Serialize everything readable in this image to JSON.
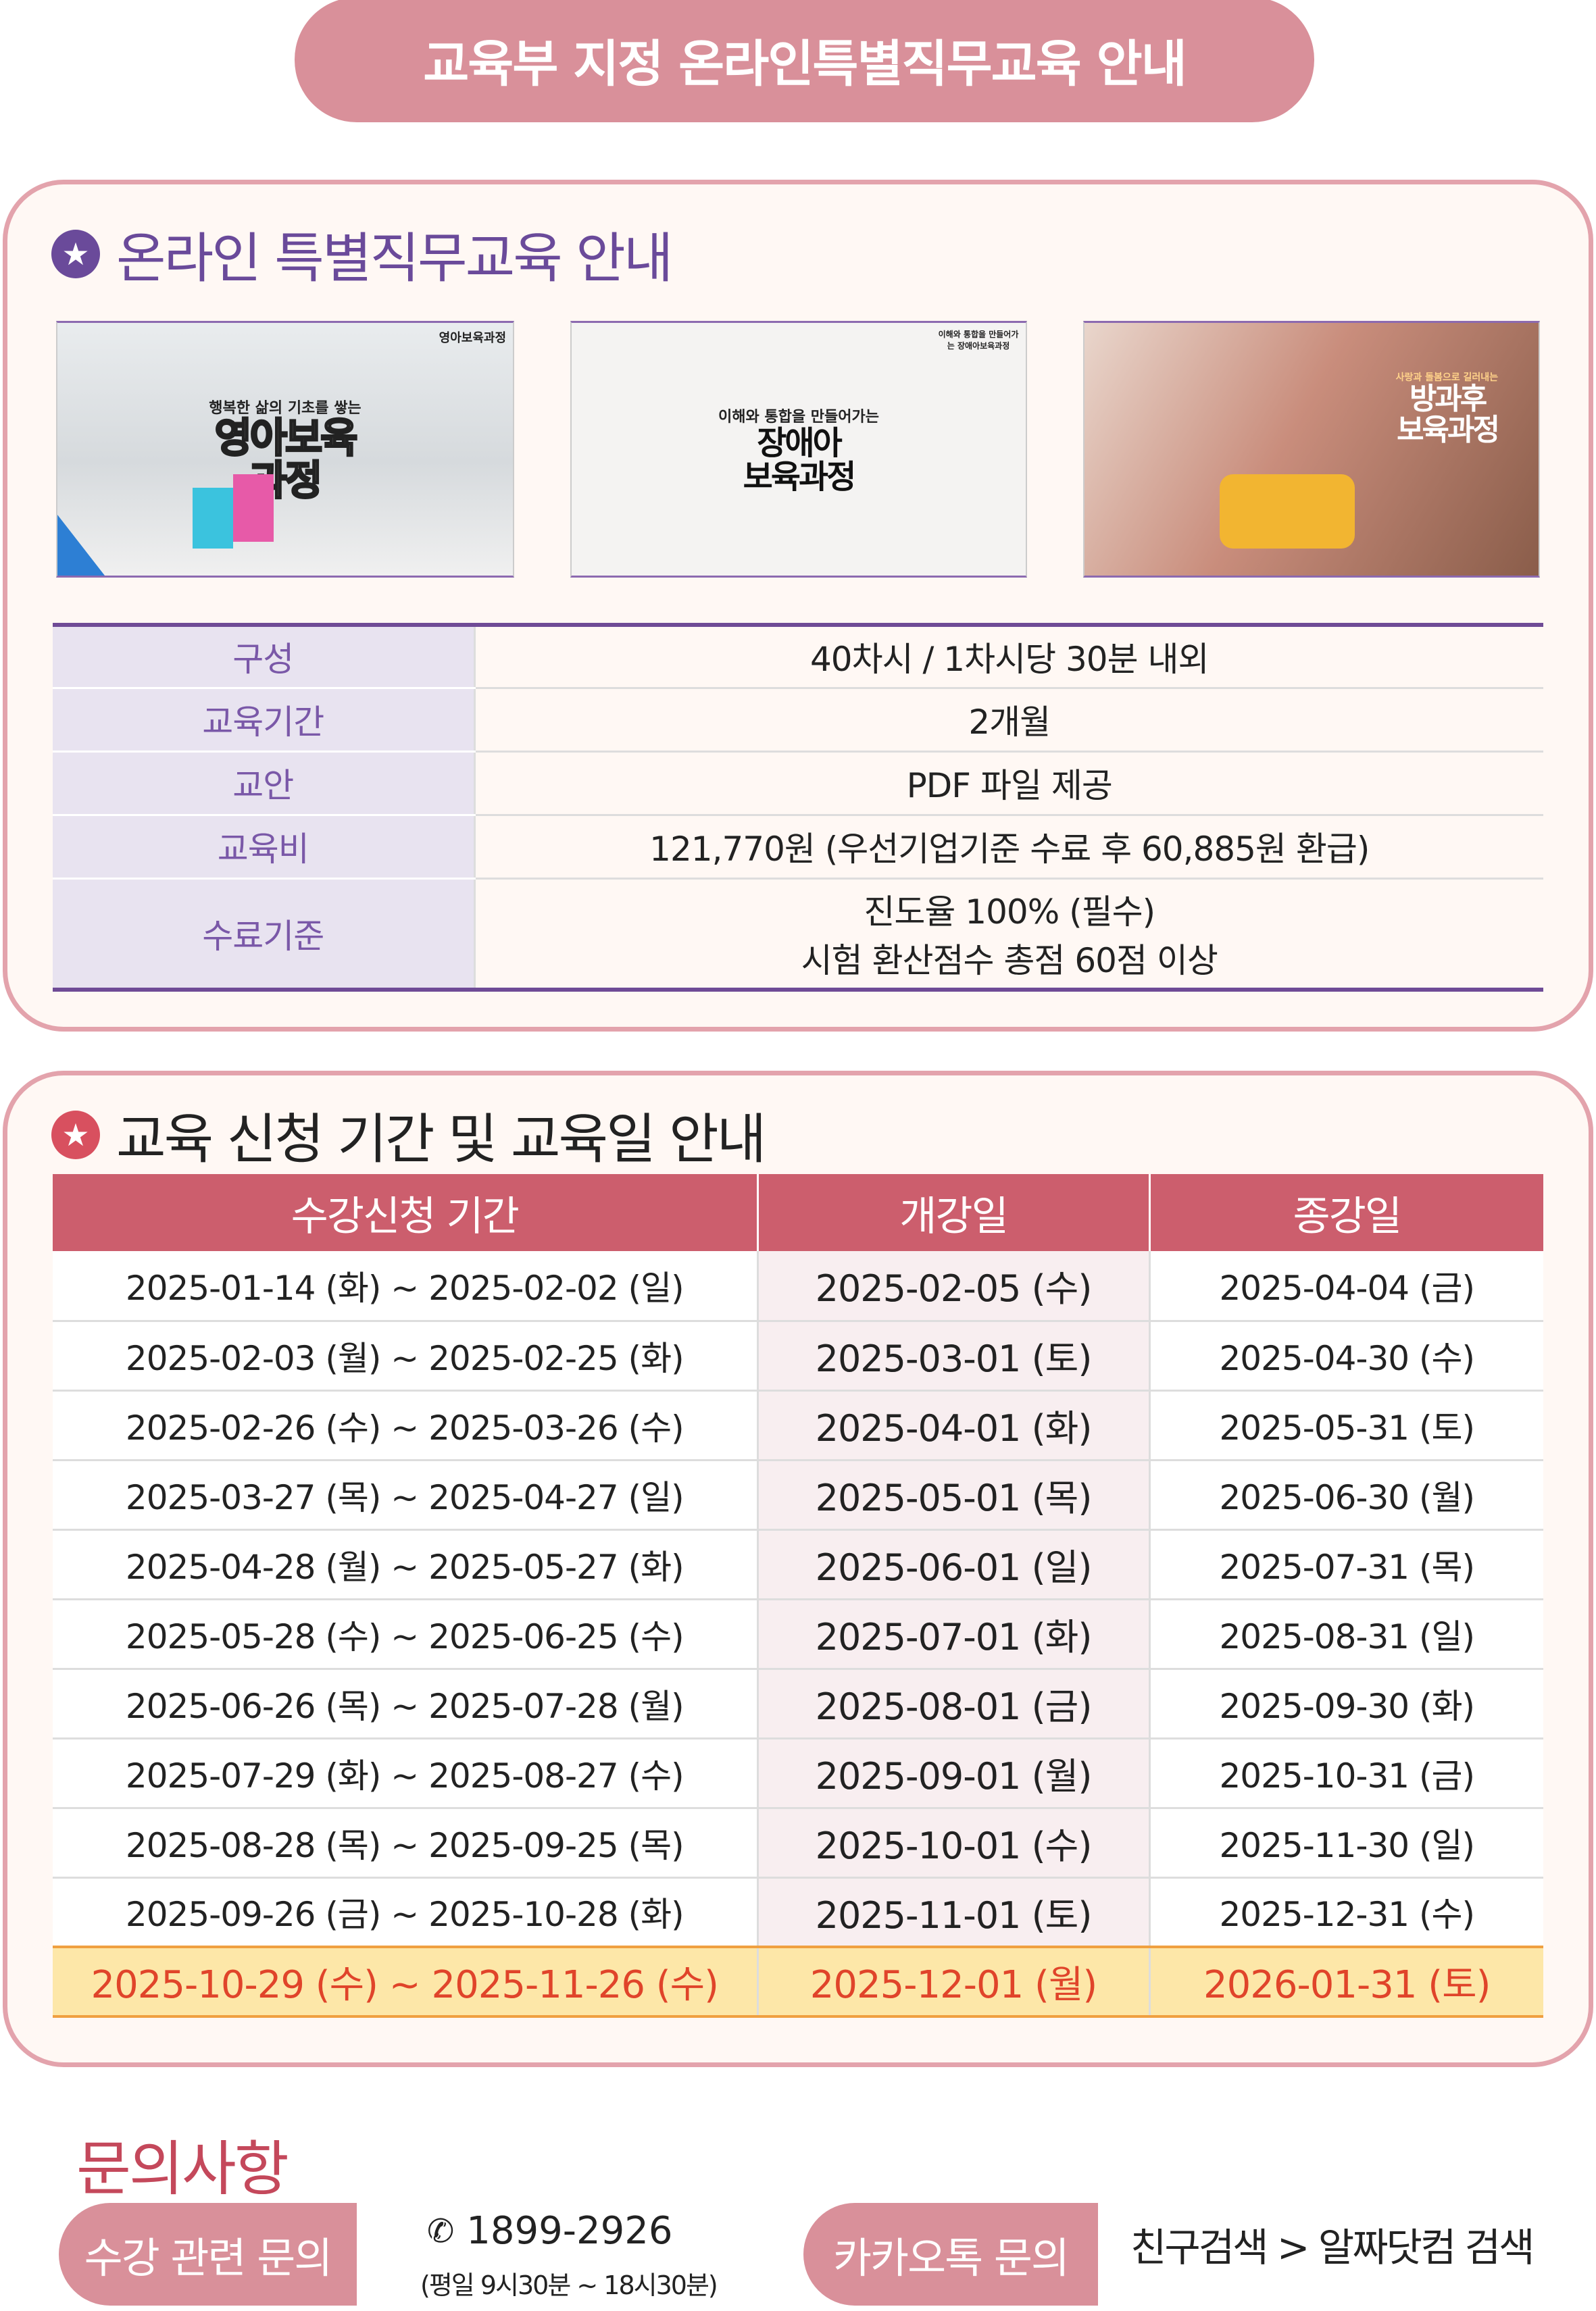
{
  "banner": {
    "title": "교육부 지정 온라인특별직무교육 안내"
  },
  "section1": {
    "title": "온라인 특별직무교육 안내",
    "star_icon": "star-icon",
    "accent_color": "#6a4a9a",
    "courses": [
      {
        "tag": "영아보육과정",
        "subtitle": "행복한 삶의 기초를 쌓는",
        "title": "영아보육\n과정"
      },
      {
        "tag": "이해와 통합을 만들어가는 장애아보육과정",
        "subtitle": "이해와 통합을 만들어가는",
        "title": "장애아\n보육과정"
      },
      {
        "tag": "",
        "subtitle": "사랑과 돌봄으로 길러내는",
        "title": "방과후\n보육과정"
      }
    ],
    "info_rows": [
      {
        "label": "구성",
        "value": "40차시 / 1차시당 30분 내외"
      },
      {
        "label": "교육기간",
        "value": "2개월"
      },
      {
        "label": "교안",
        "value": "PDF 파일 제공"
      },
      {
        "label": "교육비",
        "value": "121,770원 (우선기업기준 수료 후 60,885원 환급)"
      },
      {
        "label": "수료기준",
        "value": "진도율 100% (필수)",
        "value2": "시험 환산점수 총점 60점 이상"
      }
    ]
  },
  "section2": {
    "title": "교육 신청 기간 및 교육일 안내",
    "star_icon": "star-icon",
    "accent_color": "#cc5e6d",
    "headers": [
      "수강신청 기간",
      "개강일",
      "종강일"
    ],
    "rows": [
      [
        "2025-01-14 (화) ~ 2025-02-02 (일)",
        "2025-02-05 (수)",
        "2025-04-04 (금)"
      ],
      [
        "2025-02-03 (월) ~ 2025-02-25 (화)",
        "2025-03-01 (토)",
        "2025-04-30 (수)"
      ],
      [
        "2025-02-26 (수) ~ 2025-03-26 (수)",
        "2025-04-01 (화)",
        "2025-05-31 (토)"
      ],
      [
        "2025-03-27 (목) ~ 2025-04-27 (일)",
        "2025-05-01 (목)",
        "2025-06-30 (월)"
      ],
      [
        "2025-04-28 (월) ~ 2025-05-27 (화)",
        "2025-06-01 (일)",
        "2025-07-31 (목)"
      ],
      [
        "2025-05-28 (수) ~ 2025-06-25 (수)",
        "2025-07-01 (화)",
        "2025-08-31 (일)"
      ],
      [
        "2025-06-26 (목) ~ 2025-07-28 (월)",
        "2025-08-01 (금)",
        "2025-09-30 (화)"
      ],
      [
        "2025-07-29 (화) ~ 2025-08-27 (수)",
        "2025-09-01 (월)",
        "2025-10-31 (금)"
      ],
      [
        "2025-08-28 (목) ~ 2025-09-25 (목)",
        "2025-10-01 (수)",
        "2025-11-30 (일)"
      ],
      [
        "2025-09-26 (금) ~ 2025-10-28 (화)",
        "2025-11-01 (토)",
        "2025-12-31 (수)"
      ],
      [
        "2025-10-29 (수) ~ 2025-11-26 (수)",
        "2025-12-01 (월)",
        "2026-01-31 (토)"
      ]
    ],
    "highlight_row": 10
  },
  "contact": {
    "title": "문의사항",
    "course_button": "수강 관련 문의",
    "phone_icon": "phone-icon",
    "phone": "1899-2926",
    "hours": "(평일 9시30분 ~ 18시30분)",
    "kakao_button": "카카오톡 문의",
    "kakao_text": "친구검색 > 알짜닷컴 검색"
  }
}
